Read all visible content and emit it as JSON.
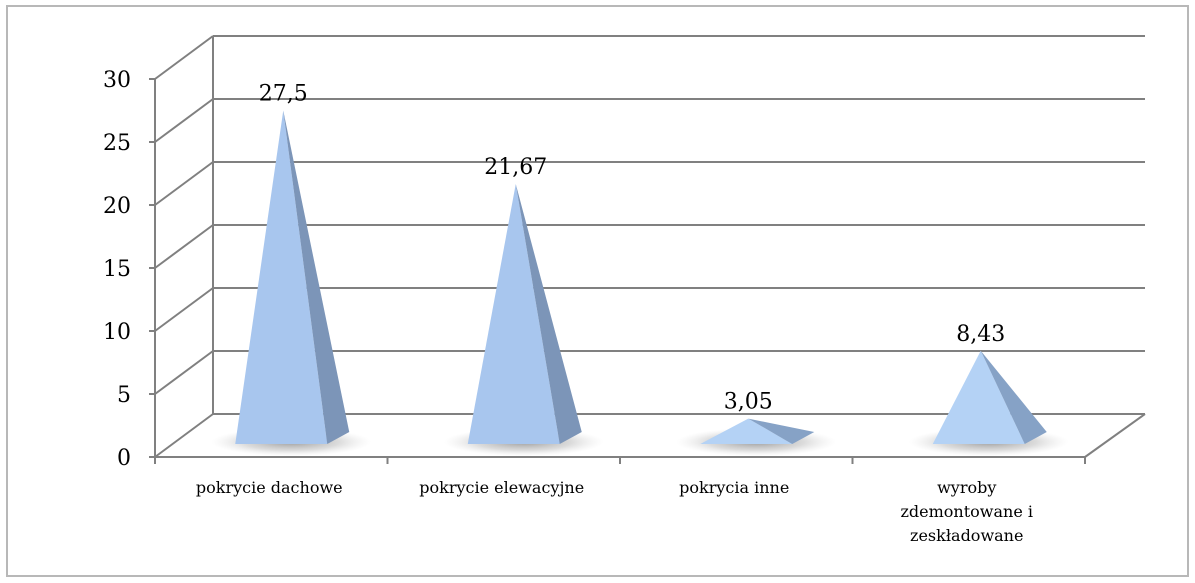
{
  "chart_data": {
    "type": "bar",
    "bar_shape": "pyramid-3d",
    "categories": [
      "pokrycie dachowe",
      "pokrycie elewacyjne",
      "pokrycia inne",
      "wyroby zdemontowane i zeskładowane"
    ],
    "category_label_lines": [
      [
        "pokrycie dachowe"
      ],
      [
        "pokrycie elewacyjne"
      ],
      [
        "pokrycia inne"
      ],
      [
        "wyroby",
        "zdemontowane i",
        "zeskładowane"
      ]
    ],
    "values": [
      27.5,
      21.67,
      3.05,
      8.43
    ],
    "value_labels": [
      "27,5",
      "21,67",
      "3,05",
      "8,43"
    ],
    "ylim": [
      0,
      30
    ],
    "yticks": [
      0,
      5,
      10,
      15,
      20,
      25,
      30
    ],
    "ytick_labels": [
      "0",
      "5",
      "10",
      "15",
      "20",
      "25",
      "30"
    ],
    "grid": true,
    "legend": false,
    "colors": {
      "bar_front": "#a8c6ee",
      "bar_side": "#7c95b8",
      "bar_light_front": "#b4d2f5",
      "bar_light_side": "#86a2c6",
      "grid": "#808080",
      "frame": "#b0b0b0"
    }
  }
}
